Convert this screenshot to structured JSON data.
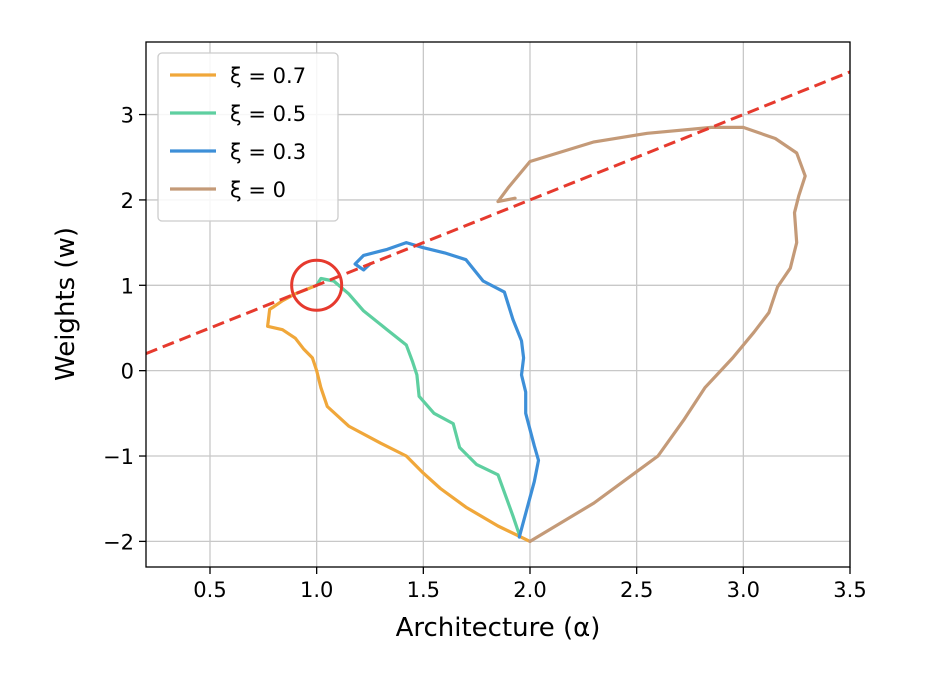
{
  "chart_data": {
    "type": "line",
    "title": "",
    "xlabel": "Architecture (α)",
    "ylabel": "Weights (w)",
    "xlim": [
      0.2,
      3.5
    ],
    "ylim": [
      -2.3,
      3.85
    ],
    "xticks": [
      0.5,
      1.0,
      1.5,
      2.0,
      2.5,
      3.0,
      3.5
    ],
    "xtick_labels": [
      "0.5",
      "1.0",
      "1.5",
      "2.0",
      "2.5",
      "3.0",
      "3.5"
    ],
    "yticks": [
      -2,
      -1,
      0,
      1,
      2,
      3
    ],
    "ytick_labels": [
      "−2",
      "−1",
      "0",
      "1",
      "2",
      "3"
    ],
    "grid": true,
    "legend_position": "top-left",
    "series": [
      {
        "name": "ξ = 0.7",
        "color": "#f0a73a",
        "points": [
          [
            2.0,
            -2.0
          ],
          [
            1.85,
            -1.82
          ],
          [
            1.7,
            -1.6
          ],
          [
            1.58,
            -1.38
          ],
          [
            1.5,
            -1.2
          ],
          [
            1.42,
            -1.0
          ],
          [
            1.3,
            -0.85
          ],
          [
            1.15,
            -0.65
          ],
          [
            1.05,
            -0.42
          ],
          [
            1.02,
            -0.2
          ],
          [
            1.0,
            0.0
          ],
          [
            0.98,
            0.15
          ],
          [
            0.94,
            0.25
          ],
          [
            0.9,
            0.38
          ],
          [
            0.84,
            0.48
          ],
          [
            0.77,
            0.52
          ],
          [
            0.78,
            0.72
          ],
          [
            0.8,
            0.75
          ],
          [
            0.84,
            0.82
          ],
          [
            0.9,
            0.9
          ],
          [
            0.95,
            0.95
          ],
          [
            1.0,
            1.0
          ]
        ]
      },
      {
        "name": "ξ = 0.5",
        "color": "#5ecfa0",
        "points": [
          [
            1.95,
            -1.92
          ],
          [
            1.92,
            -1.7
          ],
          [
            1.85,
            -1.22
          ],
          [
            1.75,
            -1.1
          ],
          [
            1.67,
            -0.9
          ],
          [
            1.64,
            -0.62
          ],
          [
            1.55,
            -0.5
          ],
          [
            1.48,
            -0.3
          ],
          [
            1.47,
            -0.05
          ],
          [
            1.45,
            0.1
          ],
          [
            1.42,
            0.3
          ],
          [
            1.33,
            0.48
          ],
          [
            1.22,
            0.7
          ],
          [
            1.15,
            0.9
          ],
          [
            1.08,
            1.05
          ],
          [
            1.02,
            1.08
          ],
          [
            1.0,
            1.0
          ]
        ]
      },
      {
        "name": "ξ = 0.3",
        "color": "#3d8fd8",
        "points": [
          [
            1.95,
            -1.95
          ],
          [
            2.02,
            -1.3
          ],
          [
            2.04,
            -1.05
          ],
          [
            2.02,
            -0.88
          ],
          [
            1.98,
            -0.5
          ],
          [
            1.98,
            -0.25
          ],
          [
            1.96,
            -0.05
          ],
          [
            1.97,
            0.15
          ],
          [
            1.96,
            0.35
          ],
          [
            1.92,
            0.6
          ],
          [
            1.88,
            0.92
          ],
          [
            1.78,
            1.05
          ],
          [
            1.7,
            1.3
          ],
          [
            1.6,
            1.38
          ],
          [
            1.5,
            1.44
          ],
          [
            1.42,
            1.5
          ],
          [
            1.33,
            1.42
          ],
          [
            1.22,
            1.35
          ],
          [
            1.18,
            1.25
          ],
          [
            1.22,
            1.18
          ],
          [
            1.25,
            1.25
          ]
        ]
      },
      {
        "name": "ξ = 0",
        "color": "#c49a78",
        "points": [
          [
            2.0,
            -2.0
          ],
          [
            2.3,
            -1.55
          ],
          [
            2.6,
            -1.0
          ],
          [
            2.72,
            -0.58
          ],
          [
            2.82,
            -0.2
          ],
          [
            2.95,
            0.15
          ],
          [
            3.05,
            0.45
          ],
          [
            3.12,
            0.68
          ],
          [
            3.16,
            0.98
          ],
          [
            3.22,
            1.2
          ],
          [
            3.25,
            1.5
          ],
          [
            3.24,
            1.85
          ],
          [
            3.26,
            2.05
          ],
          [
            3.29,
            2.28
          ],
          [
            3.25,
            2.55
          ],
          [
            3.15,
            2.72
          ],
          [
            3.0,
            2.85
          ],
          [
            2.85,
            2.85
          ],
          [
            2.55,
            2.78
          ],
          [
            2.3,
            2.68
          ],
          [
            2.0,
            2.45
          ],
          [
            1.9,
            2.15
          ],
          [
            1.85,
            1.98
          ],
          [
            1.93,
            2.02
          ]
        ]
      }
    ],
    "reference_line": {
      "style": "dashed",
      "color": "#e63a2e",
      "points": [
        [
          0.2,
          0.2
        ],
        [
          3.5,
          3.5
        ]
      ]
    },
    "highlight_circle": {
      "center": [
        1.0,
        1.0
      ],
      "color": "#e63a2e"
    }
  }
}
